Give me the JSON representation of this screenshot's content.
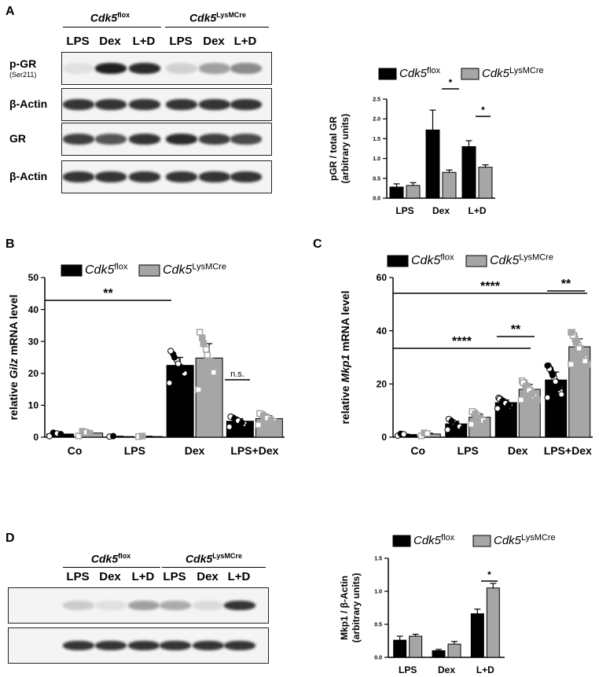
{
  "panels": {
    "A": {
      "letter": "A",
      "genotype_flox": "Cdk5",
      "genotype_flox_sup": "flox",
      "genotype_cre": "Cdk5",
      "genotype_cre_sup": "LysMCre",
      "lanes": [
        "LPS",
        "Dex",
        "L+D",
        "LPS",
        "Dex",
        "L+D"
      ],
      "blots": [
        {
          "label": "p-GR",
          "sublabel": "(Ser211)",
          "bands": [
            0.05,
            0.95,
            0.9,
            0.12,
            0.35,
            0.45
          ]
        },
        {
          "label": "β-Actin",
          "sublabel": "",
          "bands": [
            0.85,
            0.85,
            0.85,
            0.85,
            0.85,
            0.85
          ]
        },
        {
          "label": "GR",
          "sublabel": "",
          "bands": [
            0.8,
            0.7,
            0.85,
            0.9,
            0.8,
            0.75
          ]
        },
        {
          "label": "β-Actin",
          "sublabel": "",
          "bands": [
            0.85,
            0.85,
            0.85,
            0.85,
            0.85,
            0.85
          ]
        }
      ]
    },
    "B": {
      "letter": "B"
    },
    "C": {
      "letter": "C"
    },
    "D": {
      "letter": "D",
      "genotype_flox": "Cdk5",
      "genotype_flox_sup": "flox",
      "genotype_cre": "Cdk5",
      "genotype_cre_sup": "LysMCre",
      "lanes": [
        "LPS",
        "Dex",
        "L+D",
        "LPS",
        "Dex",
        "L+D"
      ],
      "blots": [
        {
          "label": "Mkp1",
          "sublabel": "",
          "bands": [
            0.15,
            0.05,
            0.35,
            0.3,
            0.08,
            0.85
          ]
        },
        {
          "label": "β-Actin",
          "sublabel": "",
          "bands": [
            0.85,
            0.85,
            0.85,
            0.85,
            0.85,
            0.85
          ]
        }
      ]
    }
  },
  "chart_data": [
    {
      "id": "A",
      "type": "bar",
      "categories": [
        "LPS",
        "Dex",
        "L+D"
      ],
      "ylabel": "pGR / total GR\n(arbitrary units)",
      "ylim": [
        0,
        2.5
      ],
      "yticks": [
        "0.0",
        "0.5",
        "1.0",
        "1.5",
        "2.0",
        "2.5"
      ],
      "series": [
        {
          "name": "Cdk5",
          "name_sup": "flox",
          "color": "#000000",
          "values": [
            0.28,
            1.72,
            1.3
          ],
          "errors": [
            0.08,
            0.5,
            0.15
          ]
        },
        {
          "name": "Cdk5",
          "name_sup": "LysMCre",
          "color": "#a6a6a6",
          "values": [
            0.32,
            0.65,
            0.78
          ],
          "errors": [
            0.07,
            0.06,
            0.06
          ]
        }
      ],
      "annotations": [
        "*",
        "*"
      ]
    },
    {
      "id": "B",
      "type": "bar",
      "categories": [
        "Co",
        "LPS",
        "Dex",
        "LPS+Dex"
      ],
      "ylabel": "relative Gilz mRNA level",
      "ylabel_italic": "Gilz",
      "ylim": [
        0,
        50
      ],
      "yticks": [
        "0",
        "10",
        "20",
        "30",
        "40",
        "50"
      ],
      "series": [
        {
          "name": "Cdk5",
          "name_sup": "flox",
          "color": "#000000",
          "values": [
            1.0,
            0.2,
            22.5,
            5.0
          ],
          "errors": [
            0.3,
            0.1,
            2.5,
            0.8
          ]
        },
        {
          "name": "Cdk5",
          "name_sup": "LysMCre",
          "color": "#a6a6a6",
          "values": [
            1.3,
            0.2,
            24.8,
            5.8
          ],
          "errors": [
            0.4,
            0.1,
            4.5,
            0.9
          ]
        }
      ],
      "annotations": [
        "**",
        "n.s."
      ]
    },
    {
      "id": "C",
      "type": "bar",
      "categories": [
        "Co",
        "LPS",
        "Dex",
        "LPS+Dex"
      ],
      "ylabel": "relative Mkp1 mRNA level",
      "ylabel_italic": "Mkp1",
      "ylim": [
        0,
        60
      ],
      "yticks": [
        "0",
        "20",
        "40",
        "60"
      ],
      "series": [
        {
          "name": "Cdk5",
          "name_sup": "flox",
          "color": "#000000",
          "values": [
            1.0,
            5.0,
            13.0,
            21.5
          ],
          "errors": [
            0.2,
            1.0,
            1.0,
            3.0
          ]
        },
        {
          "name": "Cdk5",
          "name_sup": "LysMCre",
          "color": "#a6a6a6",
          "values": [
            1.2,
            7.5,
            18.0,
            34.0
          ],
          "errors": [
            0.3,
            1.2,
            1.8,
            3.0
          ]
        }
      ],
      "annotations": [
        "****",
        "****",
        "**",
        "**"
      ]
    },
    {
      "id": "D",
      "type": "bar",
      "categories": [
        "LPS",
        "Dex",
        "L+D"
      ],
      "ylabel": "Mkp1 / β-Actin\n(arbitrary units)",
      "ylim": [
        0,
        1.5
      ],
      "yticks": [
        "0.0",
        "0.5",
        "1.0",
        "1.5"
      ],
      "series": [
        {
          "name": "Cdk5",
          "name_sup": "flox",
          "color": "#000000",
          "values": [
            0.26,
            0.1,
            0.66
          ],
          "errors": [
            0.06,
            0.02,
            0.07
          ]
        },
        {
          "name": "Cdk5",
          "name_sup": "LysMCre",
          "color": "#a6a6a6",
          "values": [
            0.32,
            0.2,
            1.05
          ],
          "errors": [
            0.03,
            0.04,
            0.07
          ]
        }
      ],
      "annotations": [
        "*"
      ]
    }
  ]
}
